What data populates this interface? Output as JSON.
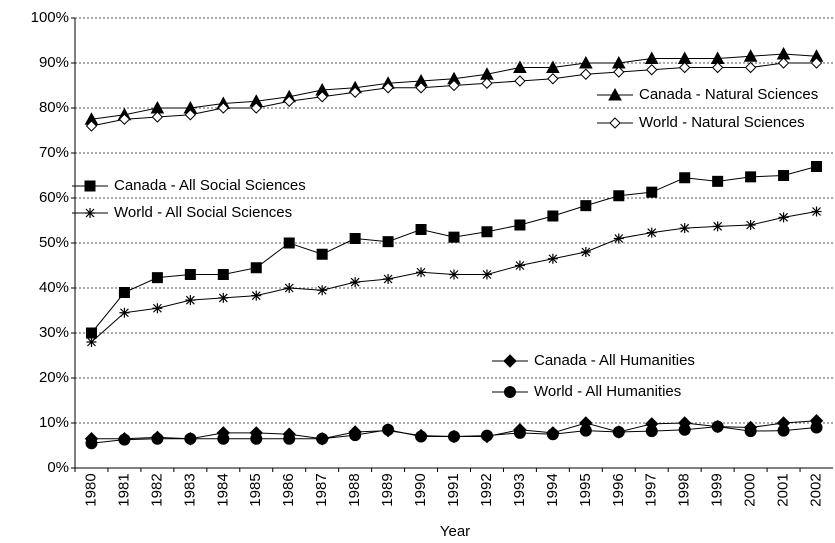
{
  "chart_data": {
    "type": "line",
    "categories": [
      "1980",
      "1981",
      "1982",
      "1983",
      "1984",
      "1985",
      "1986",
      "1987",
      "1988",
      "1989",
      "1990",
      "1991",
      "1992",
      "1993",
      "1994",
      "1995",
      "1996",
      "1997",
      "1998",
      "1999",
      "2000",
      "2001",
      "2002"
    ],
    "xlabel": "Year",
    "ylim": [
      0,
      100
    ],
    "yticks": [
      {
        "value": 0,
        "label": "0%"
      },
      {
        "value": 10,
        "label": "10%"
      },
      {
        "value": 20,
        "label": "20%"
      },
      {
        "value": 30,
        "label": "30%"
      },
      {
        "value": 40,
        "label": "40%"
      },
      {
        "value": 50,
        "label": "50%"
      },
      {
        "value": 60,
        "label": "60%"
      },
      {
        "value": 70,
        "label": "70%"
      },
      {
        "value": 80,
        "label": "80%"
      },
      {
        "value": 90,
        "label": "90%"
      },
      {
        "value": 100,
        "label": "100%"
      }
    ],
    "grid": true,
    "series": [
      {
        "name": "Canada - Natural Sciences",
        "color": "#000000",
        "marker": "triangle",
        "values": [
          77.5,
          78.5,
          80,
          80,
          81,
          81.5,
          82.5,
          84,
          84.5,
          85.5,
          86,
          86.5,
          87.5,
          89,
          89,
          90,
          90,
          91,
          91,
          91,
          91.5,
          92,
          91.5
        ]
      },
      {
        "name": "World - Natural Sciences",
        "color": "#000000",
        "marker": "diamond-open",
        "values": [
          76,
          77.5,
          78,
          78.5,
          80,
          80,
          81.5,
          82.5,
          83.5,
          84.5,
          84.5,
          85,
          85.5,
          86,
          86.5,
          87.5,
          88,
          88.5,
          89,
          89,
          89,
          90,
          90
        ]
      },
      {
        "name": "Canada - All Social Sciences",
        "color": "#000000",
        "marker": "square",
        "values": [
          30,
          39,
          42.3,
          43,
          43,
          44.5,
          50,
          47.5,
          51,
          50.3,
          53,
          51.3,
          52.5,
          54,
          56,
          58.3,
          60.5,
          61.3,
          64.5,
          63.7,
          64.7,
          65,
          67
        ]
      },
      {
        "name": "World - All Social Sciences",
        "color": "#000000",
        "marker": "asterisk",
        "values": [
          28,
          34.5,
          35.5,
          37.3,
          37.8,
          38.3,
          40,
          39.5,
          41.3,
          42,
          43.5,
          43,
          43,
          45,
          46.5,
          48,
          51,
          52.3,
          53.3,
          53.7,
          54,
          55.7,
          57
        ]
      },
      {
        "name": "Canada - All Humanities",
        "color": "#000000",
        "marker": "diamond",
        "values": [
          6.5,
          6.5,
          6.8,
          6.5,
          7.8,
          7.8,
          7.5,
          6.5,
          8,
          8.3,
          7.2,
          7,
          7,
          8.5,
          7.8,
          10,
          8,
          9.8,
          10,
          9.2,
          9,
          10,
          10.5
        ]
      },
      {
        "name": "World - All Humanities",
        "color": "#000000",
        "marker": "circle",
        "values": [
          5.5,
          6.3,
          6.5,
          6.5,
          6.5,
          6.5,
          6.5,
          6.5,
          7.3,
          8.5,
          7,
          7,
          7.2,
          7.8,
          7.5,
          8.3,
          8,
          8.2,
          8.5,
          9.2,
          8.2,
          8.3,
          9
        ]
      }
    ]
  }
}
